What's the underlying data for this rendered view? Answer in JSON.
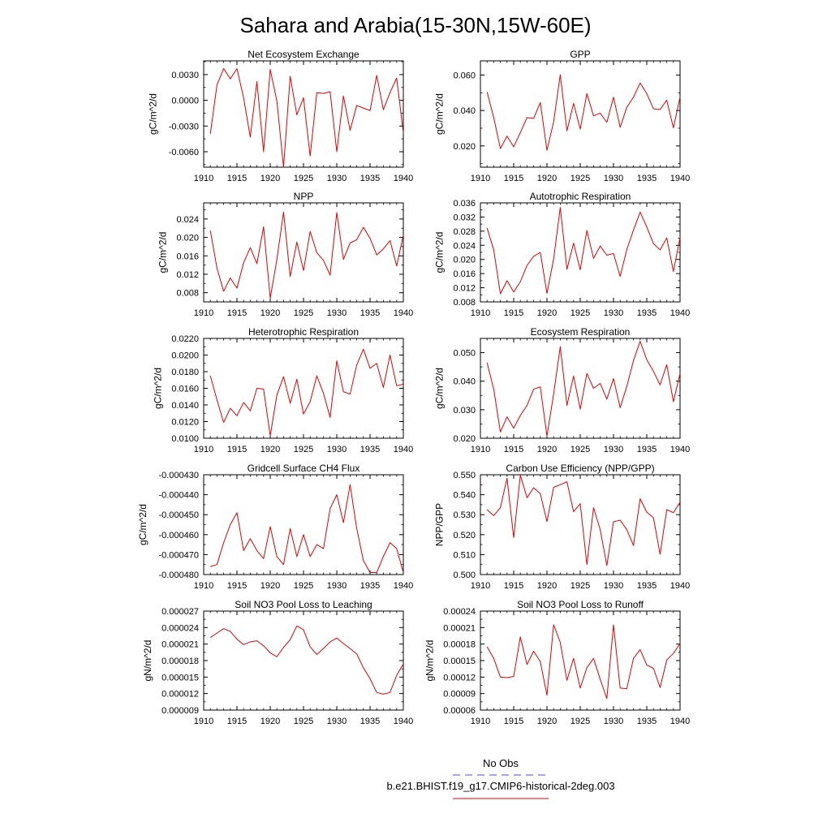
{
  "page": {
    "title": "Sahara and Arabia(15-30N,15W-60E)"
  },
  "legend": {
    "obs_label": "No Obs",
    "obs_color": "#4b4bd8",
    "model_label": "b.e21.BHIST.f19_g17.CMIP6-historical-2deg.003",
    "model_color": "#e60000"
  },
  "chart_data": [
    {
      "type": "line",
      "title": "Net Ecosystem Exchange",
      "ylabel": "gC/m^2/d",
      "xlim": [
        1910,
        1940
      ],
      "ylim": [
        -0.0078,
        0.0046
      ],
      "xticks": [
        "1910",
        "1915",
        "1920",
        "1925",
        "1930",
        "1935",
        "1940"
      ],
      "yticks": [
        {
          "v": 0.003,
          "label": "0.0030"
        },
        {
          "v": 0.0,
          "label": "0.0000"
        },
        {
          "v": -0.003,
          "label": "-0.0030"
        },
        {
          "v": -0.006,
          "label": "-0.0060"
        }
      ],
      "x": [
        1911,
        1912,
        1913,
        1914,
        1915,
        1916,
        1917,
        1918,
        1919,
        1920,
        1921,
        1922,
        1923,
        1924,
        1925,
        1926,
        1927,
        1928,
        1929,
        1930,
        1931,
        1932,
        1933,
        1934,
        1935,
        1936,
        1937,
        1938,
        1939,
        1940
      ],
      "series": [
        {
          "color": "#e60000",
          "values": [
            -0.0039,
            0.0018,
            0.0037,
            0.0025,
            0.0037,
            0.0003,
            -0.0043,
            0.0022,
            -0.006,
            0.0036,
            -0.0001,
            -0.0078,
            0.0028,
            -0.0017,
            0.0003,
            -0.0065,
            0.0009,
            0.0008,
            0.001,
            -0.006,
            0.0005,
            -0.0035,
            -0.0006,
            -0.0009,
            -0.0012,
            0.0029,
            -0.0011,
            0.0009,
            0.0026,
            -0.0038
          ]
        }
      ]
    },
    {
      "type": "line",
      "title": "GPP",
      "ylabel": "gC/m^2/d",
      "xlim": [
        1910,
        1940
      ],
      "ylim": [
        0.008,
        0.068
      ],
      "xticks": [
        "1910",
        "1915",
        "1920",
        "1925",
        "1930",
        "1935",
        "1940"
      ],
      "yticks": [
        {
          "v": 0.06,
          "label": "0.060"
        },
        {
          "v": 0.04,
          "label": "0.040"
        },
        {
          "v": 0.02,
          "label": "0.020"
        }
      ],
      "x": [
        1911,
        1912,
        1913,
        1914,
        1915,
        1916,
        1917,
        1918,
        1919,
        1920,
        1921,
        1922,
        1923,
        1924,
        1925,
        1926,
        1927,
        1928,
        1929,
        1930,
        1931,
        1932,
        1933,
        1934,
        1935,
        1936,
        1937,
        1938,
        1939,
        1940
      ],
      "series": [
        {
          "color": "#e60000",
          "values": [
            0.0505,
            0.036,
            0.0185,
            0.0255,
            0.0195,
            0.0275,
            0.036,
            0.0355,
            0.0445,
            0.0175,
            0.0335,
            0.0602,
            0.0285,
            0.044,
            0.0295,
            0.0495,
            0.037,
            0.0385,
            0.0333,
            0.0475,
            0.0305,
            0.0418,
            0.0475,
            0.0555,
            0.0495,
            0.041,
            0.0405,
            0.0458,
            0.0302,
            0.0475
          ]
        }
      ]
    },
    {
      "type": "line",
      "title": "NPP",
      "ylabel": "gC/m^2/d",
      "xlim": [
        1910,
        1940
      ],
      "ylim": [
        0.006,
        0.0275
      ],
      "xticks": [
        "1910",
        "1915",
        "1920",
        "1925",
        "1930",
        "1935",
        "1940"
      ],
      "yticks": [
        {
          "v": 0.024,
          "label": "0.024"
        },
        {
          "v": 0.02,
          "label": "0.020"
        },
        {
          "v": 0.016,
          "label": "0.016"
        },
        {
          "v": 0.012,
          "label": "0.012"
        },
        {
          "v": 0.008,
          "label": "0.008"
        }
      ],
      "x": [
        1911,
        1912,
        1913,
        1914,
        1915,
        1916,
        1917,
        1918,
        1919,
        1920,
        1921,
        1922,
        1923,
        1924,
        1925,
        1926,
        1927,
        1928,
        1929,
        1930,
        1931,
        1932,
        1933,
        1934,
        1935,
        1936,
        1937,
        1938,
        1939,
        1940
      ],
      "series": [
        {
          "color": "#e60000",
          "values": [
            0.0215,
            0.0133,
            0.0083,
            0.0112,
            0.009,
            0.0145,
            0.0178,
            0.0143,
            0.0223,
            0.0068,
            0.0152,
            0.0255,
            0.0115,
            0.019,
            0.0128,
            0.0213,
            0.0167,
            0.015,
            0.0118,
            0.0254,
            0.0152,
            0.0188,
            0.0195,
            0.0222,
            0.0198,
            0.0162,
            0.0175,
            0.0193,
            0.0138,
            0.0205
          ]
        }
      ]
    },
    {
      "type": "line",
      "title": "Autotrophic Respiration",
      "ylabel": "gC/m^2/d",
      "xlim": [
        1910,
        1940
      ],
      "ylim": [
        0.008,
        0.036
      ],
      "xticks": [
        "1910",
        "1915",
        "1920",
        "1925",
        "1930",
        "1935",
        "1940"
      ],
      "yticks": [
        {
          "v": 0.036,
          "label": "0.036"
        },
        {
          "v": 0.032,
          "label": "0.032"
        },
        {
          "v": 0.028,
          "label": "0.028"
        },
        {
          "v": 0.024,
          "label": "0.024"
        },
        {
          "v": 0.02,
          "label": "0.020"
        },
        {
          "v": 0.016,
          "label": "0.016"
        },
        {
          "v": 0.012,
          "label": "0.012"
        },
        {
          "v": 0.008,
          "label": "0.008"
        }
      ],
      "x": [
        1911,
        1912,
        1913,
        1914,
        1915,
        1916,
        1917,
        1918,
        1919,
        1920,
        1921,
        1922,
        1923,
        1924,
        1925,
        1926,
        1927,
        1928,
        1929,
        1930,
        1931,
        1932,
        1933,
        1934,
        1935,
        1936,
        1937,
        1938,
        1939,
        1940
      ],
      "series": [
        {
          "color": "#e60000",
          "values": [
            0.0289,
            0.0227,
            0.0103,
            0.014,
            0.0108,
            0.0137,
            0.0183,
            0.0209,
            0.022,
            0.0104,
            0.0201,
            0.0347,
            0.0172,
            0.0246,
            0.0171,
            0.0282,
            0.0203,
            0.0238,
            0.0212,
            0.0217,
            0.0152,
            0.0228,
            0.0283,
            0.0334,
            0.0292,
            0.0245,
            0.0227,
            0.0261,
            0.0166,
            0.0262
          ]
        }
      ]
    },
    {
      "type": "line",
      "title": "Heterotrophic Respiration",
      "ylabel": "gC/m^2/d",
      "xlim": [
        1910,
        1940
      ],
      "ylim": [
        0.01,
        0.022
      ],
      "xticks": [
        "1910",
        "1915",
        "1920",
        "1925",
        "1930",
        "1935",
        "1940"
      ],
      "yticks": [
        {
          "v": 0.022,
          "label": "0.0220"
        },
        {
          "v": 0.02,
          "label": "0.0200"
        },
        {
          "v": 0.018,
          "label": "0.0180"
        },
        {
          "v": 0.016,
          "label": "0.0160"
        },
        {
          "v": 0.014,
          "label": "0.0140"
        },
        {
          "v": 0.012,
          "label": "0.0120"
        },
        {
          "v": 0.01,
          "label": "0.0100"
        }
      ],
      "x": [
        1911,
        1912,
        1913,
        1914,
        1915,
        1916,
        1917,
        1918,
        1919,
        1920,
        1921,
        1922,
        1923,
        1924,
        1925,
        1926,
        1927,
        1928,
        1929,
        1930,
        1931,
        1932,
        1933,
        1934,
        1935,
        1936,
        1937,
        1938,
        1939,
        1940
      ],
      "series": [
        {
          "color": "#e60000",
          "values": [
            0.0175,
            0.0146,
            0.0119,
            0.0136,
            0.0127,
            0.0143,
            0.0133,
            0.016,
            0.0159,
            0.0103,
            0.0152,
            0.0174,
            0.0142,
            0.0171,
            0.0129,
            0.0144,
            0.0175,
            0.0154,
            0.0125,
            0.0193,
            0.0156,
            0.0153,
            0.0188,
            0.0207,
            0.0184,
            0.019,
            0.0161,
            0.02,
            0.0163,
            0.0165
          ]
        }
      ]
    },
    {
      "type": "line",
      "title": "Ecosystem Respiration",
      "ylabel": "gC/m^2/d",
      "xlim": [
        1910,
        1940
      ],
      "ylim": [
        0.02,
        0.055
      ],
      "xticks": [
        "1910",
        "1915",
        "1920",
        "1925",
        "1930",
        "1935",
        "1940"
      ],
      "yticks": [
        {
          "v": 0.05,
          "label": "0.050"
        },
        {
          "v": 0.04,
          "label": "0.040"
        },
        {
          "v": 0.03,
          "label": "0.030"
        },
        {
          "v": 0.02,
          "label": "0.020"
        }
      ],
      "x": [
        1911,
        1912,
        1913,
        1914,
        1915,
        1916,
        1917,
        1918,
        1919,
        1920,
        1921,
        1922,
        1923,
        1924,
        1925,
        1926,
        1927,
        1928,
        1929,
        1930,
        1931,
        1932,
        1933,
        1934,
        1935,
        1936,
        1937,
        1938,
        1939,
        1940
      ],
      "series": [
        {
          "color": "#e60000",
          "values": [
            0.0465,
            0.0372,
            0.0222,
            0.0275,
            0.0235,
            0.028,
            0.0315,
            0.0372,
            0.038,
            0.0207,
            0.0355,
            0.0521,
            0.0315,
            0.0418,
            0.0302,
            0.0427,
            0.0375,
            0.0392,
            0.0337,
            0.0409,
            0.0307,
            0.0382,
            0.0472,
            0.054,
            0.0475,
            0.0435,
            0.0387,
            0.0458,
            0.0328,
            0.0427
          ]
        }
      ]
    },
    {
      "type": "line",
      "title": "Gridcell Surface CH4 Flux",
      "ylabel": "gC/m^2/d",
      "xlim": [
        1910,
        1940
      ],
      "ylim": [
        -0.00048,
        -0.00043
      ],
      "xticks": [
        "1910",
        "1915",
        "1920",
        "1925",
        "1930",
        "1935",
        "1940"
      ],
      "yticks": [
        {
          "v": -0.00043,
          "label": "-0.000430"
        },
        {
          "v": -0.00044,
          "label": "-0.000440"
        },
        {
          "v": -0.00045,
          "label": "-0.000450"
        },
        {
          "v": -0.00046,
          "label": "-0.000460"
        },
        {
          "v": -0.00047,
          "label": "-0.000470"
        },
        {
          "v": -0.00048,
          "label": "-0.000480"
        }
      ],
      "x": [
        1911,
        1912,
        1913,
        1914,
        1915,
        1916,
        1917,
        1918,
        1919,
        1920,
        1921,
        1922,
        1923,
        1924,
        1925,
        1926,
        1927,
        1928,
        1929,
        1930,
        1931,
        1932,
        1933,
        1934,
        1935,
        1936,
        1937,
        1938,
        1939,
        1940
      ],
      "series": [
        {
          "color": "#e60000",
          "values": [
            -0.000476,
            -0.000475,
            -0.000464,
            -0.000455,
            -0.000449,
            -0.000468,
            -0.000462,
            -0.000468,
            -0.000472,
            -0.000456,
            -0.000471,
            -0.000475,
            -0.000457,
            -0.000471,
            -0.00046,
            -0.000471,
            -0.000465,
            -0.000467,
            -0.000447,
            -0.00044,
            -0.000454,
            -0.000435,
            -0.000457,
            -0.000473,
            -0.000479,
            -0.000479,
            -0.000471,
            -0.000464,
            -0.000467,
            -0.000479
          ]
        }
      ]
    },
    {
      "type": "line",
      "title": "Carbon Use Efficiency (NPP/GPP)",
      "ylabel": "NPP/GPP",
      "xlim": [
        1910,
        1940
      ],
      "ylim": [
        0.5,
        0.55
      ],
      "xticks": [
        "1910",
        "1915",
        "1920",
        "1925",
        "1930",
        "1935",
        "1940"
      ],
      "yticks": [
        {
          "v": 0.55,
          "label": "0.550"
        },
        {
          "v": 0.54,
          "label": "0.540"
        },
        {
          "v": 0.53,
          "label": "0.530"
        },
        {
          "v": 0.52,
          "label": "0.520"
        },
        {
          "v": 0.51,
          "label": "0.510"
        },
        {
          "v": 0.5,
          "label": "0.500"
        }
      ],
      "x": [
        1911,
        1912,
        1913,
        1914,
        1915,
        1916,
        1917,
        1918,
        1919,
        1920,
        1921,
        1922,
        1923,
        1924,
        1925,
        1926,
        1927,
        1928,
        1929,
        1930,
        1931,
        1932,
        1933,
        1934,
        1935,
        1936,
        1937,
        1938,
        1939,
        1940
      ],
      "series": [
        {
          "color": "#e60000",
          "values": [
            0.5325,
            0.5295,
            0.5335,
            0.5483,
            0.5185,
            0.5498,
            0.5385,
            0.5435,
            0.5405,
            0.5265,
            0.5437,
            0.545,
            0.5465,
            0.5315,
            0.5355,
            0.505,
            0.5335,
            0.5225,
            0.5045,
            0.5265,
            0.5272,
            0.5225,
            0.5145,
            0.538,
            0.5312,
            0.5285,
            0.5102,
            0.5325,
            0.531,
            0.5362
          ]
        }
      ]
    },
    {
      "type": "line",
      "title": "Soil NO3 Pool Loss to Leaching",
      "ylabel": "gN/m^2/d",
      "xlim": [
        1910,
        1940
      ],
      "ylim": [
        9e-06,
        2.7e-05
      ],
      "xticks": [
        "1910",
        "1915",
        "1920",
        "1925",
        "1930",
        "1935",
        "1940"
      ],
      "yticks": [
        {
          "v": 2.7e-05,
          "label": "0.000027"
        },
        {
          "v": 2.4e-05,
          "label": "0.000024"
        },
        {
          "v": 2.1e-05,
          "label": "0.000021"
        },
        {
          "v": 1.8e-05,
          "label": "0.000018"
        },
        {
          "v": 1.5e-05,
          "label": "0.000015"
        },
        {
          "v": 1.2e-05,
          "label": "0.000012"
        },
        {
          "v": 9e-06,
          "label": "0.000009"
        }
      ],
      "x": [
        1911,
        1912,
        1913,
        1914,
        1915,
        1916,
        1917,
        1918,
        1919,
        1920,
        1921,
        1922,
        1923,
        1924,
        1925,
        1926,
        1927,
        1928,
        1929,
        1930,
        1931,
        1932,
        1933,
        1934,
        1935,
        1936,
        1937,
        1938,
        1939,
        1940
      ],
      "series": [
        {
          "color": "#e60000",
          "values": [
            2.22e-05,
            2.3e-05,
            2.38e-05,
            2.33e-05,
            2.19e-05,
            2.09e-05,
            2.14e-05,
            2.16e-05,
            2.07e-05,
            1.94e-05,
            1.87e-05,
            2.04e-05,
            2.18e-05,
            2.43e-05,
            2.36e-05,
            2.05e-05,
            1.91e-05,
            2.02e-05,
            2.14e-05,
            2.21e-05,
            2.11e-05,
            2.02e-05,
            1.92e-05,
            1.67e-05,
            1.47e-05,
            1.22e-05,
            1.19e-05,
            1.22e-05,
            1.53e-05,
            1.74e-05
          ]
        }
      ]
    },
    {
      "type": "line",
      "title": "Soil NO3 Pool Loss to Runoff",
      "ylabel": "gN/m^2/d",
      "xlim": [
        1910,
        1940
      ],
      "ylim": [
        6e-05,
        0.00024
      ],
      "xticks": [
        "1910",
        "1915",
        "1920",
        "1925",
        "1930",
        "1935",
        "1940"
      ],
      "yticks": [
        {
          "v": 0.00024,
          "label": "0.00024"
        },
        {
          "v": 0.00021,
          "label": "0.00021"
        },
        {
          "v": 0.00018,
          "label": "0.00018"
        },
        {
          "v": 0.00015,
          "label": "0.00015"
        },
        {
          "v": 0.00012,
          "label": "0.00012"
        },
        {
          "v": 9e-05,
          "label": "0.00009"
        },
        {
          "v": 6e-05,
          "label": "0.00006"
        }
      ],
      "x": [
        1911,
        1912,
        1913,
        1914,
        1915,
        1916,
        1917,
        1918,
        1919,
        1920,
        1921,
        1922,
        1923,
        1924,
        1925,
        1926,
        1927,
        1928,
        1929,
        1930,
        1931,
        1932,
        1933,
        1934,
        1935,
        1936,
        1937,
        1938,
        1939,
        1940
      ],
      "series": [
        {
          "color": "#e60000",
          "values": [
            0.000175,
            0.000154,
            0.00012,
            0.000119,
            0.000121,
            0.000193,
            0.000143,
            0.000167,
            0.000148,
            8.7e-05,
            0.000215,
            0.000183,
            0.000114,
            0.000154,
            0.0001,
            0.000137,
            0.000154,
            0.000116,
            8.1e-05,
            0.000215,
            0.0001,
            9.9e-05,
            0.000154,
            0.00017,
            0.000142,
            0.000136,
            0.000101,
            0.000151,
            0.000163,
            0.000181
          ]
        }
      ]
    }
  ]
}
